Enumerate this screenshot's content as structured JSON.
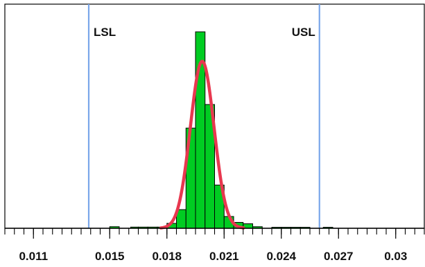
{
  "chart_data": {
    "type": "bar",
    "title": "",
    "xlabel": "",
    "ylabel": "",
    "xlim": [
      0.0095,
      0.0315
    ],
    "ylim": [
      0,
      100
    ],
    "x_tick_labels": [
      "0.011",
      "0.015",
      "0.018",
      "0.021",
      "0.024",
      "0.027",
      "0.03"
    ],
    "x_tick_values": [
      0.011,
      0.015,
      0.018,
      0.021,
      0.024,
      0.027,
      0.03
    ],
    "bin_width": 0.0005,
    "series": [
      {
        "bins": [
          {
            "x0": 0.015,
            "x1": 0.0155,
            "count": 0.8
          },
          {
            "x0": 0.0161,
            "x1": 0.0165,
            "count": 0.6
          },
          {
            "x0": 0.0165,
            "x1": 0.017,
            "count": 0.6
          },
          {
            "x0": 0.017,
            "x1": 0.0175,
            "count": 0.6
          },
          {
            "x0": 0.0175,
            "x1": 0.018,
            "count": 0.6
          },
          {
            "x0": 0.018,
            "x1": 0.0185,
            "count": 2.5
          },
          {
            "x0": 0.0185,
            "x1": 0.019,
            "count": 9.5
          },
          {
            "x0": 0.019,
            "x1": 0.0195,
            "count": 51
          },
          {
            "x0": 0.0195,
            "x1": 0.02,
            "count": 100
          },
          {
            "x0": 0.02,
            "x1": 0.0205,
            "count": 63
          },
          {
            "x0": 0.0205,
            "x1": 0.021,
            "count": 22
          },
          {
            "x0": 0.021,
            "x1": 0.0215,
            "count": 6
          },
          {
            "x0": 0.0215,
            "x1": 0.022,
            "count": 3
          },
          {
            "x0": 0.022,
            "x1": 0.0225,
            "count": 2.3
          },
          {
            "x0": 0.0225,
            "x1": 0.023,
            "count": 0.8
          },
          {
            "x0": 0.0235,
            "x1": 0.024,
            "count": 0.5
          },
          {
            "x0": 0.024,
            "x1": 0.0245,
            "count": 0.5
          },
          {
            "x0": 0.0245,
            "x1": 0.025,
            "count": 0.5
          },
          {
            "x0": 0.025,
            "x1": 0.0255,
            "count": 0.5
          },
          {
            "x0": 0.0262,
            "x1": 0.0267,
            "count": 0.5
          }
        ]
      }
    ],
    "fit_curve": {
      "mean": 0.01985,
      "sd": 0.00062,
      "peak": 85
    },
    "spec_limits": [
      {
        "label": "LSL",
        "value": 0.0139
      },
      {
        "label": "USL",
        "value": 0.026
      }
    ],
    "colors": {
      "bar_fill": "#00cc22",
      "bar_stroke": "#000000",
      "curve": "#e8384f",
      "spec_line": "#7aa6ea",
      "axis": "#000000"
    },
    "grid": false
  }
}
